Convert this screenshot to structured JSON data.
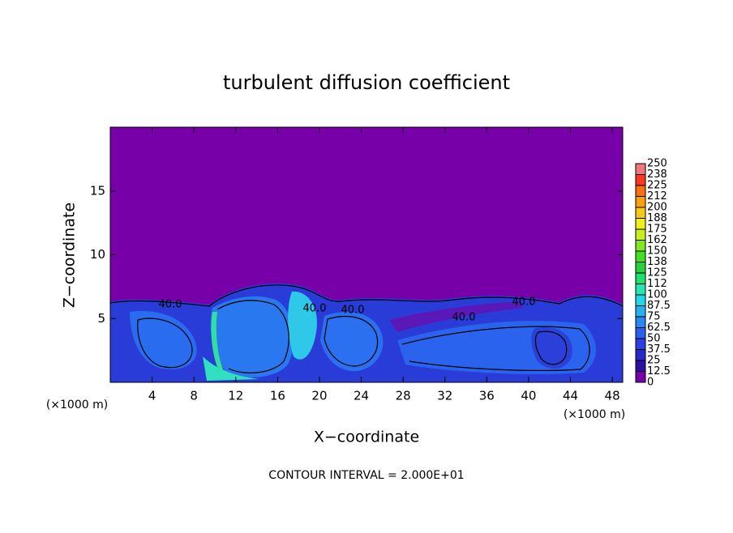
{
  "chart_data": {
    "type": "contour",
    "title": "turbulent diffusion coefficient",
    "x_label": "X−coordinate",
    "y_label": "Z−coordinate",
    "x_unit_label": "(×1000 m)",
    "y_unit_label": "(×1000 m)",
    "contour_interval_label": "CONTOUR INTERVAL = 2.000E+01",
    "contour_labels": [
      "40.0",
      "40.0",
      "40.0",
      "40.0",
      "40.0"
    ],
    "background_color": "#7800a8",
    "xlim": [
      0,
      49
    ],
    "xticks": [
      4,
      8,
      12,
      16,
      20,
      24,
      28,
      32,
      36,
      40,
      44,
      48
    ],
    "ylim": [
      0,
      20
    ],
    "yticks": [
      5,
      10,
      15
    ],
    "colorbar": {
      "ticks": [
        0,
        12.5,
        25,
        37.5,
        50,
        62.5,
        75,
        87.5,
        100,
        {
          "value": 112.5,
          "label": "112"
        },
        125,
        {
          "value": 137.5,
          "label": "138"
        },
        150,
        {
          "value": 162.5,
          "label": "162"
        },
        175,
        {
          "value": 187.5,
          "label": "188"
        },
        200,
        {
          "value": 212.5,
          "label": "212"
        },
        225,
        {
          "value": 237.5,
          "label": "238"
        },
        250
      ],
      "colors": [
        "#7800a8",
        "#2a10a0",
        "#2a28c8",
        "#2a40e0",
        "#2a60f0",
        "#2a88f0",
        "#28b0f0",
        "#20d8e8",
        "#20e8b0",
        "#20e070",
        "#28d040",
        "#40e020",
        "#80e820",
        "#c8f020",
        "#f0f020",
        "#f8c818",
        "#f8a010",
        "#f87010",
        "#f83820",
        "#f07878"
      ]
    }
  }
}
